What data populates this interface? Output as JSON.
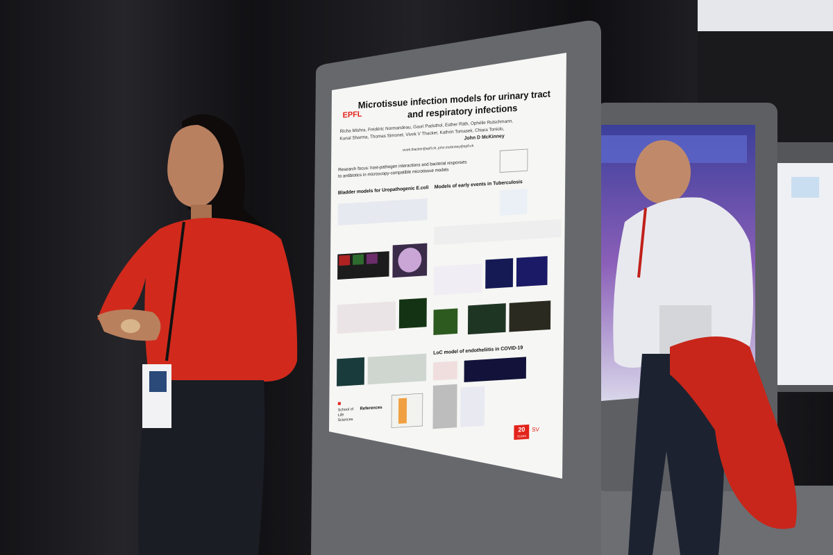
{
  "poster": {
    "logo": "EPFL",
    "title_line1": "Microtissue infection models for urinary tract",
    "title_line2": "and respiratory infections",
    "authors_line1": "Richa Mishra, Frédéric Normandeau, Gauri Paduthol, Esther Räth, Ophélie Rutschmann,",
    "authors_line2": "Kunal Sharma, Thomas Simonet, Vivek V Thacker, Kathrin Tomasek, Chiara Toniolo,",
    "authors_line3": "John D McKinney",
    "emails": "vivek.thacker@epfl.ch, john.mckinney@epfl.ch",
    "focus_line1": "Research focus: host-pathogen interactions and bacterial responses",
    "focus_line2": "to antibiotics in microscopy-compatible microtissue models",
    "sections": [
      "Bladder models for Uropathogenic E.coli",
      "Models of early events in Tuberculosis",
      "LoC model of endotheliitis in COVID-19"
    ],
    "references": "References",
    "school": [
      "School of",
      "Life",
      "Sciences"
    ],
    "anniversary": "20",
    "anniversary_sub": "YEARS",
    "faculty": "SV"
  }
}
